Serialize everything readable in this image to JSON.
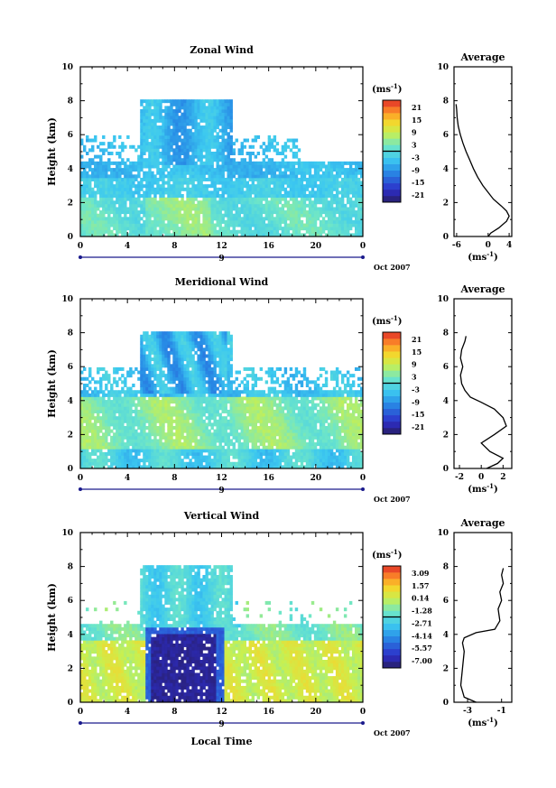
{
  "chart_data": [
    {
      "type": "heatmap",
      "title": "Zonal Wind",
      "ylabel": "Height (km)",
      "xlabel": "",
      "date_label": "Oct 2007",
      "x_ticks": [
        "0",
        "4",
        "8",
        "12",
        "16",
        "20",
        "0"
      ],
      "y_ticks": [
        "0",
        "2",
        "4",
        "6",
        "8",
        "10"
      ],
      "xlim": [
        0,
        24
      ],
      "ylim": [
        0,
        10
      ],
      "day_labels": [
        "9"
      ],
      "colorbar": {
        "unit_base": "(ms",
        "unit_exp": "-1",
        "unit_close": ")",
        "ticks": [
          "21",
          "15",
          "9",
          "3",
          "-3",
          "-9",
          "-15",
          "-21"
        ],
        "min": -24,
        "max": 24
      },
      "profile": {
        "title": "Average",
        "xlabel_base": "(ms",
        "xlabel_exp": "-1",
        "xlabel_close": ")",
        "x_ticks": [
          "-6",
          "0",
          "4"
        ],
        "xlim": [
          -6.5,
          4.5
        ],
        "points": [
          [
            0.0,
            0.0
          ],
          [
            0.5,
            0.2
          ],
          [
            2.0,
            0.5
          ],
          [
            3.5,
            0.9
          ],
          [
            4.0,
            1.2
          ],
          [
            3.5,
            1.5
          ],
          [
            2.5,
            1.8
          ],
          [
            1.0,
            2.2
          ],
          [
            0.0,
            2.6
          ],
          [
            -1.0,
            3.0
          ],
          [
            -2.0,
            3.5
          ],
          [
            -2.8,
            4.0
          ],
          [
            -3.5,
            4.5
          ],
          [
            -4.2,
            5.0
          ],
          [
            -4.8,
            5.5
          ],
          [
            -5.3,
            6.0
          ],
          [
            -5.7,
            6.5
          ],
          [
            -5.9,
            7.0
          ],
          [
            -6.0,
            7.5
          ],
          [
            -6.1,
            7.8
          ]
        ]
      }
    },
    {
      "type": "heatmap",
      "title": "Meridional Wind",
      "ylabel": "Height (km)",
      "xlabel": "",
      "date_label": "Oct 2007",
      "x_ticks": [
        "0",
        "4",
        "8",
        "12",
        "16",
        "20",
        "0"
      ],
      "y_ticks": [
        "0",
        "2",
        "4",
        "6",
        "8",
        "10"
      ],
      "xlim": [
        0,
        24
      ],
      "ylim": [
        0,
        10
      ],
      "day_labels": [
        "9"
      ],
      "colorbar": {
        "unit_base": "(ms",
        "unit_exp": "-1",
        "unit_close": ")",
        "ticks": [
          "21",
          "15",
          "9",
          "3",
          "-3",
          "-9",
          "-15",
          "-21"
        ],
        "min": -24,
        "max": 24
      },
      "profile": {
        "title": "Average",
        "xlabel_base": "(ms",
        "xlabel_exp": "-1",
        "xlabel_close": ")",
        "x_ticks": [
          "-2",
          "0",
          "2"
        ],
        "xlim": [
          -2.5,
          2.8
        ],
        "points": [
          [
            0.5,
            0.0
          ],
          [
            1.5,
            0.3
          ],
          [
            2.0,
            0.6
          ],
          [
            0.8,
            1.0
          ],
          [
            0.0,
            1.5
          ],
          [
            1.2,
            2.0
          ],
          [
            2.3,
            2.5
          ],
          [
            2.0,
            3.0
          ],
          [
            1.2,
            3.5
          ],
          [
            0.0,
            3.9
          ],
          [
            -1.0,
            4.2
          ],
          [
            -1.5,
            4.6
          ],
          [
            -1.8,
            5.0
          ],
          [
            -1.9,
            5.5
          ],
          [
            -1.7,
            6.0
          ],
          [
            -1.9,
            6.5
          ],
          [
            -1.8,
            7.0
          ],
          [
            -1.5,
            7.5
          ],
          [
            -1.4,
            7.8
          ]
        ]
      }
    },
    {
      "type": "heatmap",
      "title": "Vertical Wind",
      "ylabel": "Height (km)",
      "xlabel": "Local Time",
      "date_label": "Oct 2007",
      "x_ticks": [
        "0",
        "4",
        "8",
        "12",
        "16",
        "20",
        "0"
      ],
      "y_ticks": [
        "0",
        "2",
        "4",
        "6",
        "8",
        "10"
      ],
      "xlim": [
        0,
        24
      ],
      "ylim": [
        0,
        10
      ],
      "day_labels": [
        "9"
      ],
      "colorbar": {
        "unit_base": "(ms",
        "unit_exp": "-1",
        "unit_close": ")",
        "ticks": [
          "3.09",
          "1.57",
          "0.14",
          "-1.28",
          "-2.71",
          "-4.14",
          "-5.57",
          "-7.00"
        ],
        "min": -7.7,
        "max": 3.8
      },
      "profile": {
        "title": "Average",
        "xlabel_base": "(ms",
        "xlabel_exp": "-1",
        "xlabel_close": ")",
        "x_ticks": [
          "-3",
          "-1"
        ],
        "xlim": [
          -3.8,
          -0.4
        ],
        "points": [
          [
            -2.5,
            0.0
          ],
          [
            -3.2,
            0.3
          ],
          [
            -3.4,
            1.0
          ],
          [
            -3.3,
            2.0
          ],
          [
            -3.2,
            3.0
          ],
          [
            -3.3,
            3.5
          ],
          [
            -3.2,
            3.8
          ],
          [
            -2.5,
            4.1
          ],
          [
            -1.4,
            4.3
          ],
          [
            -1.1,
            4.8
          ],
          [
            -1.2,
            5.5
          ],
          [
            -1.0,
            6.0
          ],
          [
            -1.1,
            6.5
          ],
          [
            -0.9,
            7.0
          ],
          [
            -1.0,
            7.5
          ],
          [
            -0.9,
            7.9
          ]
        ]
      }
    }
  ]
}
